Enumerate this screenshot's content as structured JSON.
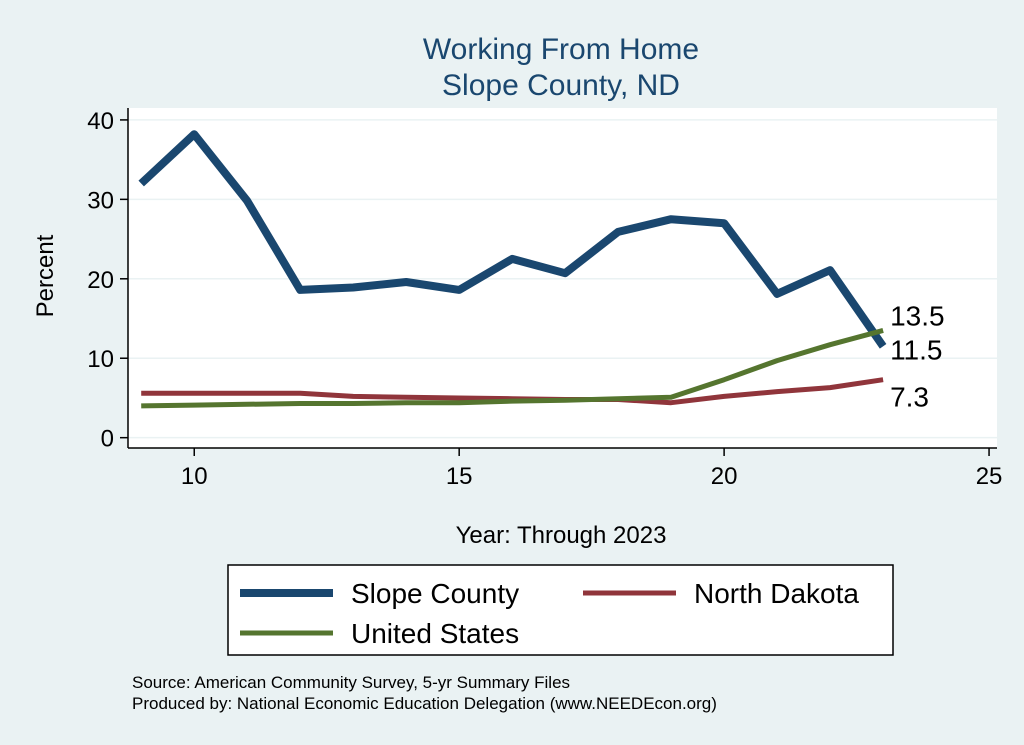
{
  "chart_data": {
    "type": "line",
    "title": [
      "Working From Home",
      "Slope County, ND"
    ],
    "xlabel": "Year: Through 2023",
    "ylabel": "Percent",
    "xlim": [
      8.75,
      25.15
    ],
    "ylim": [
      -1.3,
      41.5
    ],
    "xticks": [
      10,
      15,
      20,
      25
    ],
    "yticks": [
      0,
      10,
      20,
      30,
      40
    ],
    "grid": true,
    "legend_position": "bottom",
    "x": [
      9,
      10,
      11,
      12,
      13,
      14,
      15,
      16,
      17,
      18,
      19,
      20,
      21,
      22,
      23
    ],
    "series": [
      {
        "name": "Slope County",
        "color": "#1a476f",
        "values": [
          32.0,
          38.2,
          29.8,
          18.6,
          18.9,
          19.6,
          18.6,
          22.5,
          20.7,
          25.9,
          27.5,
          27.0,
          18.1,
          21.1,
          11.5
        ]
      },
      {
        "name": "North Dakota",
        "color": "#90353b",
        "values": [
          5.6,
          5.6,
          5.6,
          5.6,
          5.2,
          5.1,
          5.0,
          4.9,
          4.8,
          4.8,
          4.4,
          5.2,
          5.8,
          6.3,
          7.3
        ]
      },
      {
        "name": "United States",
        "color": "#55752f",
        "values": [
          4.0,
          4.1,
          4.2,
          4.3,
          4.3,
          4.4,
          4.4,
          4.6,
          4.7,
          4.9,
          5.1,
          7.3,
          9.7,
          11.7,
          13.5
        ]
      }
    ],
    "end_labels": [
      {
        "series": "United States",
        "text": "13.5"
      },
      {
        "series": "Slope County",
        "text": "11.5"
      },
      {
        "series": "North Dakota",
        "text": "7.3"
      }
    ]
  },
  "notes": {
    "source": "Source: American Community Survey, 5-yr Summary Files",
    "produced_by": "Produced by: National Economic Education Delegation (www.NEEDEcon.org)"
  }
}
